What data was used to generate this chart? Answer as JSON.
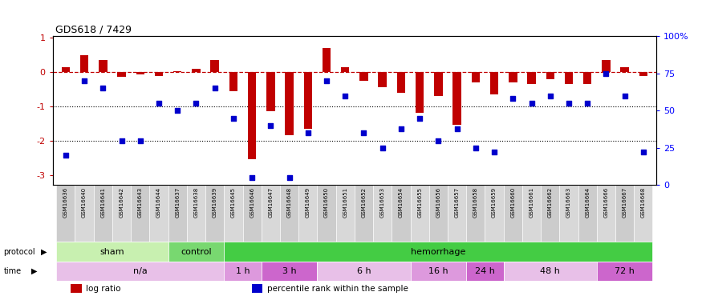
{
  "title": "GDS618 / 7429",
  "samples": [
    "GSM16636",
    "GSM16640",
    "GSM16641",
    "GSM16642",
    "GSM16643",
    "GSM16644",
    "GSM16637",
    "GSM16638",
    "GSM16639",
    "GSM16645",
    "GSM16646",
    "GSM16647",
    "GSM16648",
    "GSM16649",
    "GSM16650",
    "GSM16651",
    "GSM16652",
    "GSM16653",
    "GSM16654",
    "GSM16655",
    "GSM16656",
    "GSM16657",
    "GSM16658",
    "GSM16659",
    "GSM16660",
    "GSM16661",
    "GSM16662",
    "GSM16663",
    "GSM16664",
    "GSM16666",
    "GSM16667",
    "GSM16668"
  ],
  "log_ratio": [
    0.15,
    0.5,
    0.35,
    -0.15,
    -0.08,
    -0.12,
    0.02,
    0.1,
    0.35,
    -0.55,
    -2.55,
    -1.15,
    -1.85,
    -1.65,
    0.7,
    0.15,
    -0.25,
    -0.45,
    -0.6,
    -1.2,
    -0.7,
    -1.55,
    -0.3,
    -0.65,
    -0.3,
    -0.35,
    -0.2,
    -0.35,
    -0.35,
    0.35,
    0.15,
    -0.12
  ],
  "percentile": [
    20,
    70,
    65,
    30,
    30,
    55,
    50,
    55,
    65,
    45,
    5,
    40,
    5,
    35,
    70,
    60,
    35,
    25,
    38,
    45,
    30,
    38,
    25,
    22,
    58,
    55,
    60,
    55,
    55,
    75,
    60,
    22
  ],
  "ylim": [
    -3.3,
    1.05
  ],
  "yticks": [
    1,
    0,
    -1,
    -2,
    -3
  ],
  "ytick_labels": [
    "1",
    "0",
    "-1",
    "-2",
    "-3"
  ],
  "hline_dotted": [
    -1.0,
    -2.0
  ],
  "right_ytick_pct": [
    0,
    25,
    50,
    75,
    100
  ],
  "right_ytick_labels": [
    "0",
    "25",
    "50",
    "75",
    "100%"
  ],
  "protocol_groups": [
    {
      "label": "sham",
      "start": 0,
      "end": 5,
      "color": "#c8f0b0"
    },
    {
      "label": "control",
      "start": 6,
      "end": 8,
      "color": "#78d870"
    },
    {
      "label": "hemorrhage",
      "start": 9,
      "end": 31,
      "color": "#44cc44"
    }
  ],
  "time_groups": [
    {
      "label": "n/a",
      "start": 0,
      "end": 8,
      "color": "#e8c0e8"
    },
    {
      "label": "1 h",
      "start": 9,
      "end": 10,
      "color": "#dd99dd"
    },
    {
      "label": "3 h",
      "start": 11,
      "end": 13,
      "color": "#cc66cc"
    },
    {
      "label": "6 h",
      "start": 14,
      "end": 18,
      "color": "#e8c0e8"
    },
    {
      "label": "16 h",
      "start": 19,
      "end": 21,
      "color": "#dd99dd"
    },
    {
      "label": "24 h",
      "start": 22,
      "end": 23,
      "color": "#cc66cc"
    },
    {
      "label": "48 h",
      "start": 24,
      "end": 28,
      "color": "#e8c0e8"
    },
    {
      "label": "72 h",
      "start": 29,
      "end": 31,
      "color": "#cc66cc"
    }
  ],
  "bar_color": "#c00000",
  "dot_color": "#0000cc",
  "bg_color": "#ffffff",
  "sample_box_color": "#cccccc",
  "legend_items": [
    {
      "label": "log ratio",
      "color": "#c00000"
    },
    {
      "label": "percentile rank within the sample",
      "color": "#0000cc"
    }
  ]
}
